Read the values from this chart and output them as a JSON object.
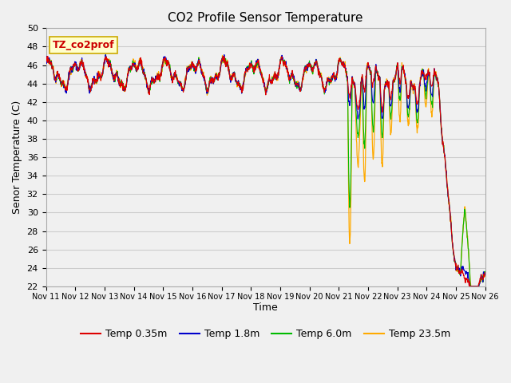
{
  "title": "CO2 Profile Sensor Temperature",
  "ylabel": "Senor Temperature (C)",
  "xlabel": "Time",
  "annotation": "TZ_co2prof",
  "annotation_bg": "#ffffcc",
  "annotation_border": "#ccaa00",
  "ylim": [
    22,
    50
  ],
  "yticks": [
    22,
    24,
    26,
    28,
    30,
    32,
    34,
    36,
    38,
    40,
    42,
    44,
    46,
    48,
    50
  ],
  "xtick_labels": [
    "Nov 11",
    "Nov 12",
    "Nov 13",
    "Nov 14",
    "Nov 15",
    "Nov 16",
    "Nov 17",
    "Nov 18",
    "Nov 19",
    "Nov 20",
    "Nov 21",
    "Nov 22",
    "Nov 23",
    "Nov 24",
    "Nov 25",
    "Nov 26"
  ],
  "series": {
    "Temp 0.35m": {
      "color": "#dd0000",
      "lw": 0.8
    },
    "Temp 1.8m": {
      "color": "#0000cc",
      "lw": 0.8
    },
    "Temp 6.0m": {
      "color": "#00bb00",
      "lw": 0.8
    },
    "Temp 23.5m": {
      "color": "#ffaa00",
      "lw": 0.9
    }
  },
  "grid_color": "#cccccc",
  "bg_color": "#f0f0f0",
  "plot_bg": "#f0f0f0",
  "fig_bg": "#f0f0f0"
}
